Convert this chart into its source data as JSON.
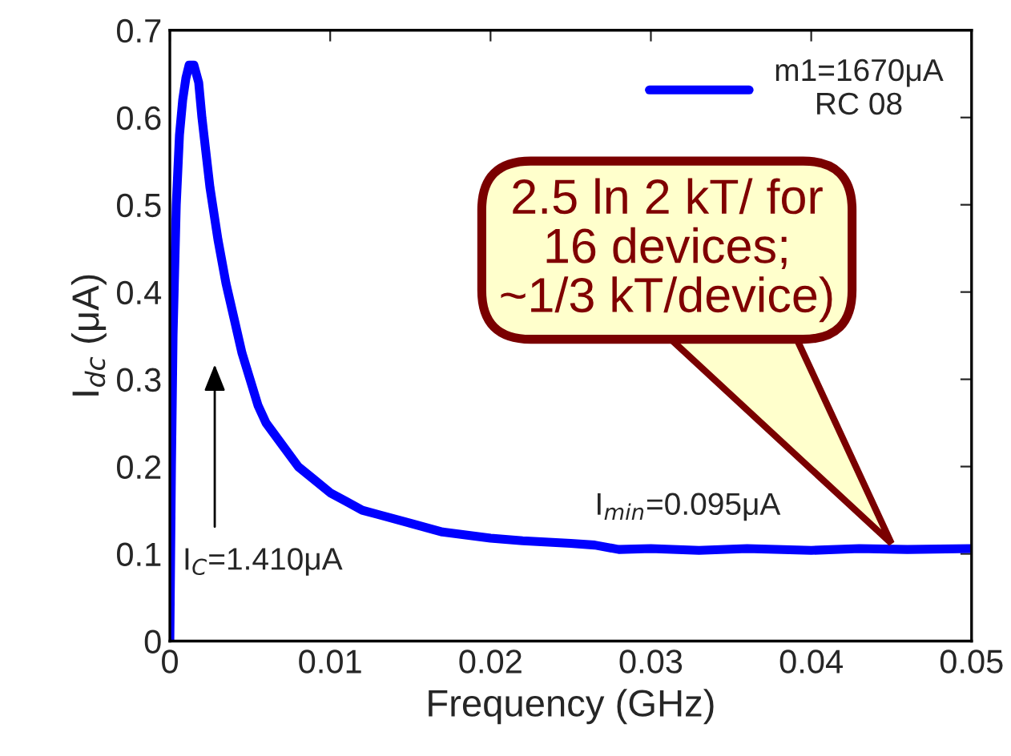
{
  "chart_data": {
    "type": "line",
    "xlabel": "Frequency (GHz)",
    "ylabel": "I$_{dc}$ (μA)",
    "xlim": [
      0,
      0.05
    ],
    "ylim": [
      0,
      0.7
    ],
    "xticks": [
      0,
      0.01,
      0.02,
      0.03,
      0.04,
      0.05
    ],
    "yticks": [
      0,
      0.1,
      0.2,
      0.3,
      0.4,
      0.5,
      0.6,
      0.7
    ],
    "legend": "top right",
    "grid": false,
    "series": [
      {
        "name": "m1=1670μA\nRC 08",
        "color": "#0000ff",
        "x": [
          0,
          0.0001,
          0.0002,
          0.0004,
          0.0006,
          0.0008,
          0.001,
          0.0012,
          0.0015,
          0.0018,
          0.002,
          0.0025,
          0.003,
          0.0035,
          0.004,
          0.0045,
          0.005,
          0.0055,
          0.006,
          0.007,
          0.008,
          0.009,
          0.01,
          0.011,
          0.012,
          0.013,
          0.015,
          0.017,
          0.02,
          0.022,
          0.025,
          0.0265,
          0.028,
          0.03,
          0.033,
          0.036,
          0.04,
          0.043,
          0.046,
          0.05
        ],
        "values": [
          0,
          0.2,
          0.35,
          0.5,
          0.58,
          0.62,
          0.645,
          0.66,
          0.66,
          0.64,
          0.6,
          0.52,
          0.46,
          0.41,
          0.37,
          0.33,
          0.3,
          0.27,
          0.25,
          0.225,
          0.2,
          0.185,
          0.17,
          0.16,
          0.15,
          0.145,
          0.135,
          0.125,
          0.118,
          0.115,
          0.112,
          0.11,
          0.105,
          0.106,
          0.104,
          0.106,
          0.104,
          0.106,
          0.105,
          0.106
        ]
      }
    ],
    "annotations": [
      "I$_{C}$=1.410μA",
      "I$_{min}$=0.095μA",
      "2.5 ln 2 kT/ for\n16 devices;\n~1/3 kT/device)"
    ]
  }
}
